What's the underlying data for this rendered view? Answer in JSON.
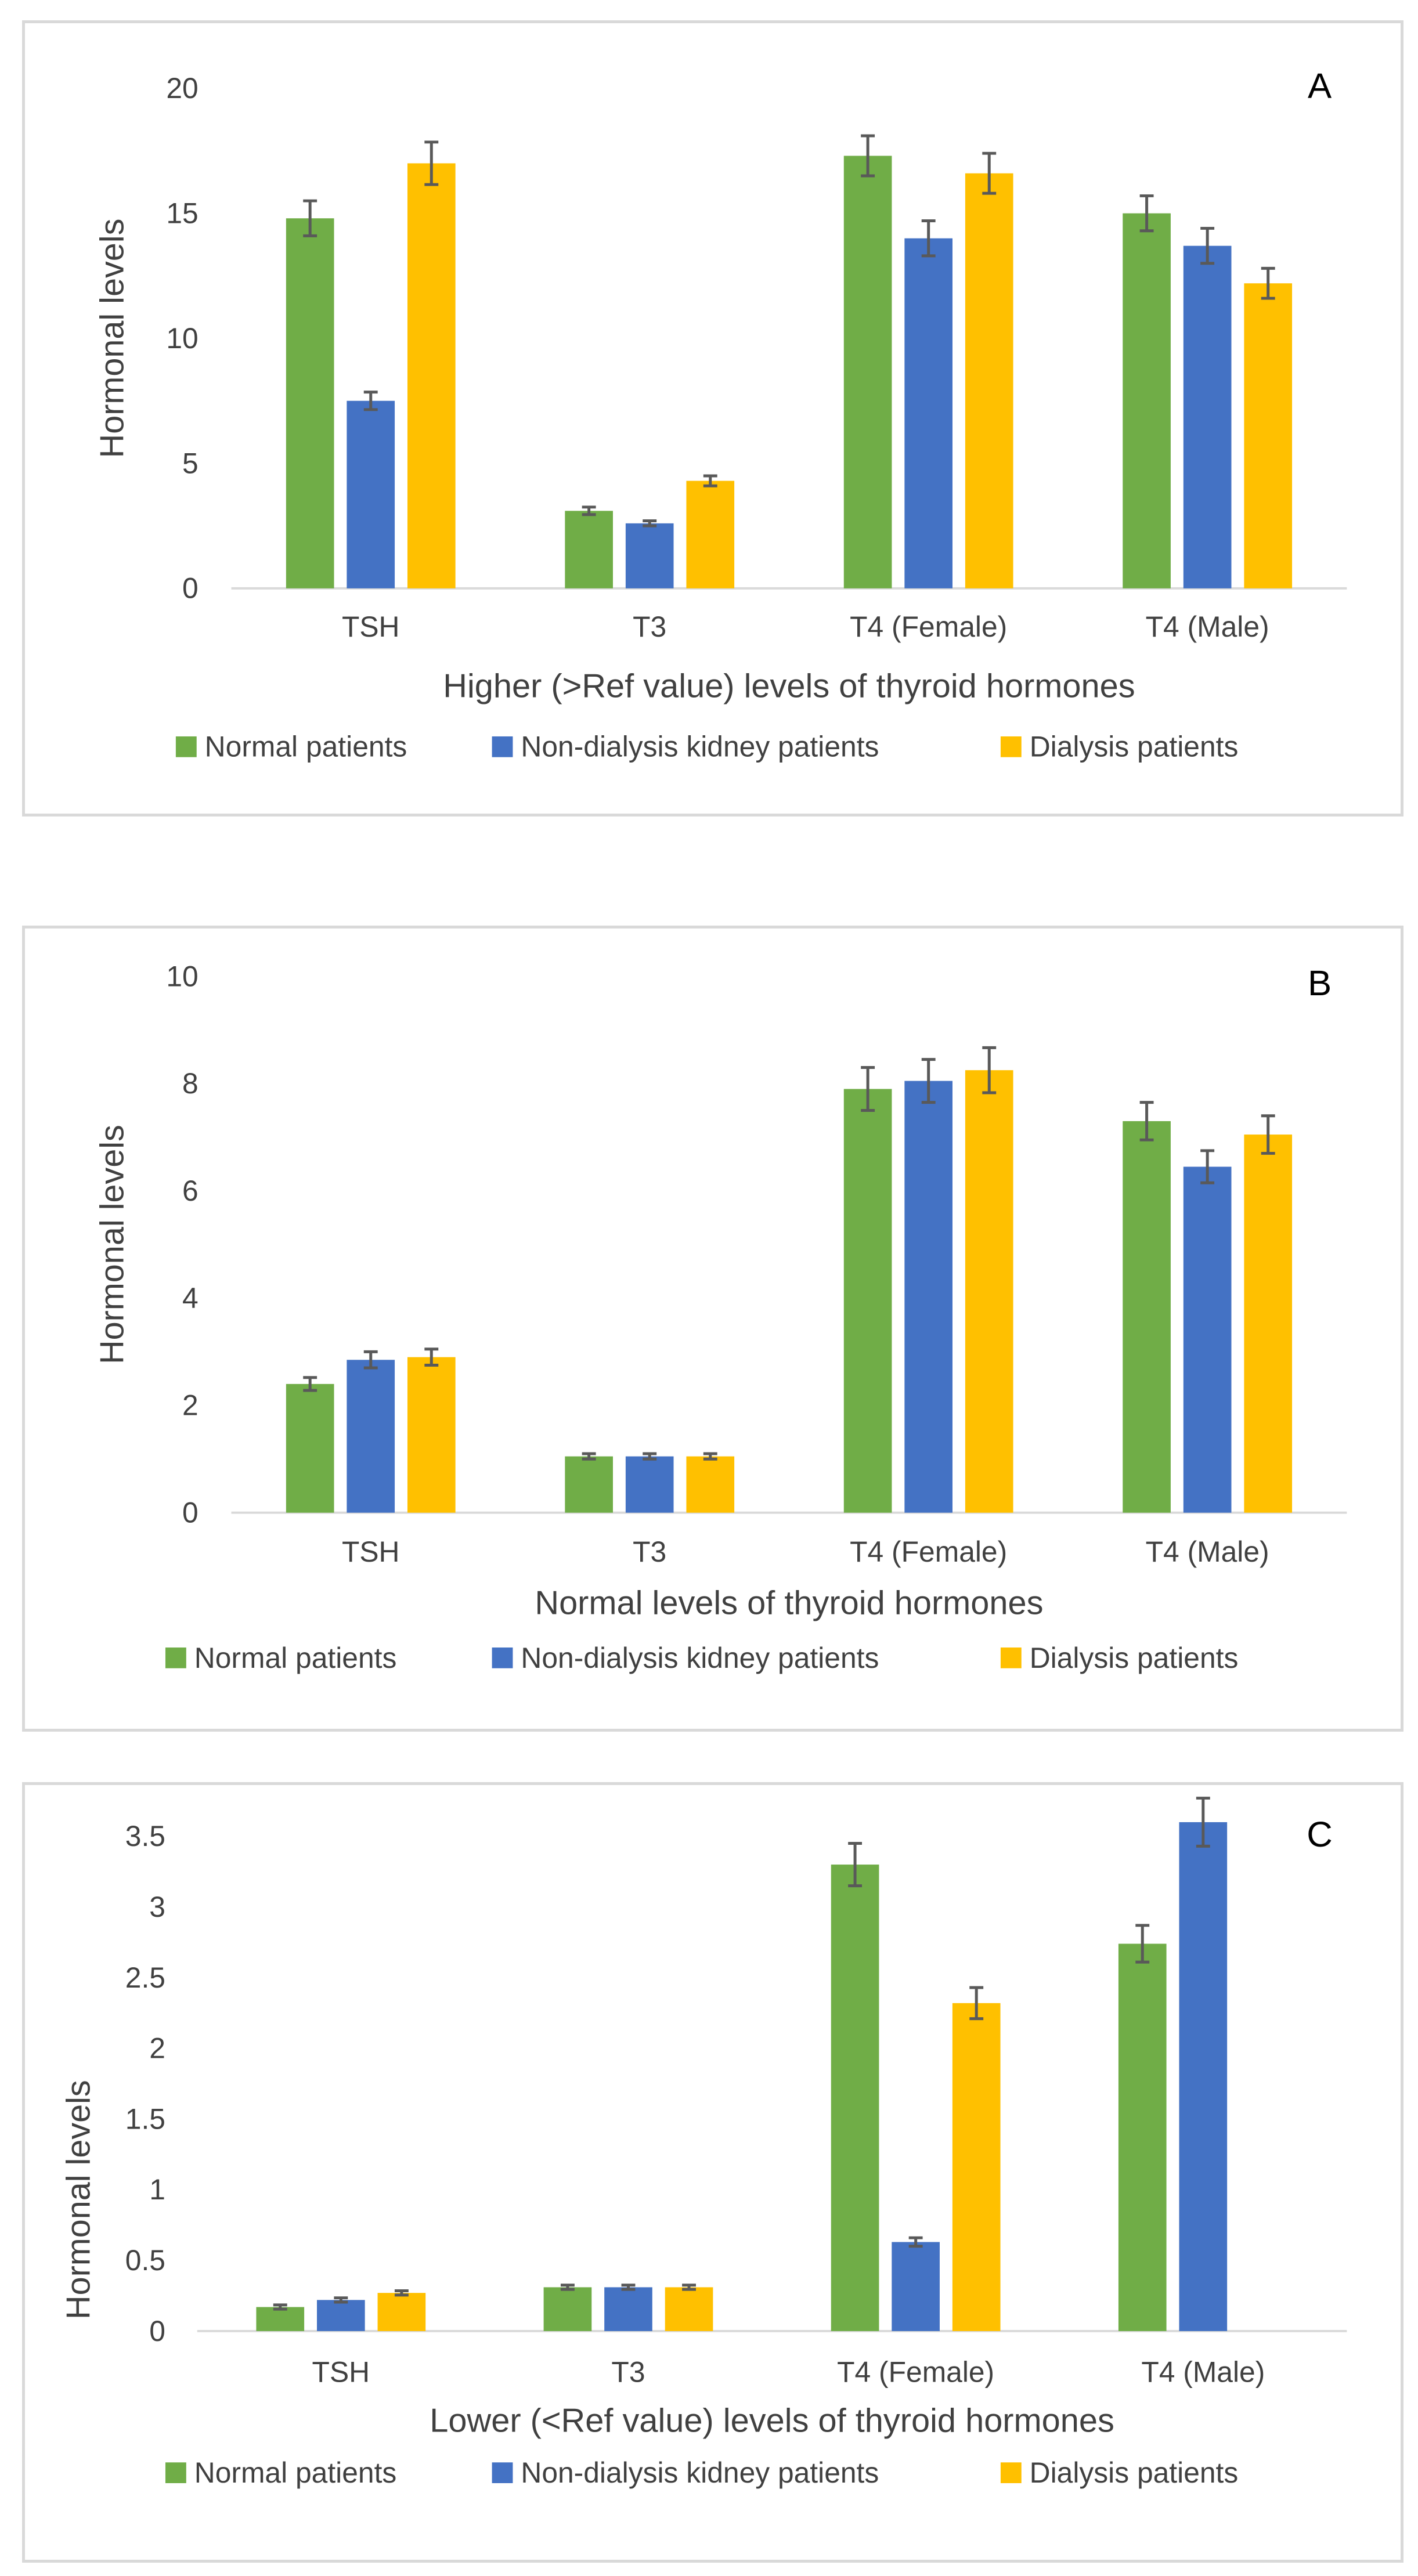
{
  "chart_data": [
    {
      "type": "bar",
      "panel_letter": "A",
      "categories": [
        "TSH",
        "T3",
        "T4 (Female)",
        "T4 (Male)"
      ],
      "series": [
        {
          "name": "Normal patients",
          "values": [
            14.8,
            3.1,
            17.3,
            15.0
          ],
          "errors": [
            0.7,
            0.15,
            0.8,
            0.7
          ]
        },
        {
          "name": "Non-dialysis kidney patients",
          "values": [
            7.5,
            2.6,
            14.0,
            13.7
          ],
          "errors": [
            0.35,
            0.1,
            0.7,
            0.7
          ]
        },
        {
          "name": "Dialysis patients",
          "values": [
            17.0,
            4.3,
            16.6,
            12.2
          ],
          "errors": [
            0.85,
            0.2,
            0.8,
            0.6
          ]
        }
      ],
      "colors": [
        "#70ad47",
        "#4472c4",
        "#ffc000"
      ],
      "xlabel": "Higher (>Ref value) levels of thyroid hormones",
      "ylabel": "Hormonal levels",
      "ylim": [
        0,
        20
      ],
      "yticks": [
        "0",
        "5",
        "10",
        "15",
        "20"
      ],
      "grid": false,
      "legend_position": "bottom"
    },
    {
      "type": "bar",
      "panel_letter": "B",
      "categories": [
        "TSH",
        "T3",
        "T4 (Female)",
        "T4 (Male)"
      ],
      "series": [
        {
          "name": "Normal patients",
          "values": [
            2.4,
            1.05,
            7.9,
            7.3
          ],
          "errors": [
            0.12,
            0.05,
            0.4,
            0.35
          ]
        },
        {
          "name": "Non-dialysis kidney patients",
          "values": [
            2.85,
            1.05,
            8.05,
            6.45
          ],
          "errors": [
            0.15,
            0.05,
            0.4,
            0.3
          ]
        },
        {
          "name": "Dialysis patients",
          "values": [
            2.9,
            1.05,
            8.25,
            7.05
          ],
          "errors": [
            0.15,
            0.05,
            0.42,
            0.35
          ]
        }
      ],
      "colors": [
        "#70ad47",
        "#4472c4",
        "#ffc000"
      ],
      "xlabel": "Normal levels of thyroid hormones",
      "ylabel": "Hormonal levels",
      "ylim": [
        0,
        10
      ],
      "yticks": [
        "0",
        "2",
        "4",
        "6",
        "8",
        "10"
      ],
      "grid": false,
      "legend_position": "bottom"
    },
    {
      "type": "bar",
      "panel_letter": "C",
      "categories": [
        "TSH",
        "T3",
        "T4 (Female)",
        "T4 (Male)"
      ],
      "series": [
        {
          "name": "Normal patients",
          "values": [
            0.17,
            0.31,
            3.3,
            2.74
          ],
          "errors": [
            0.015,
            0.015,
            0.15,
            0.13
          ]
        },
        {
          "name": "Non-dialysis kidney patients",
          "values": [
            0.22,
            0.31,
            0.63,
            3.6
          ],
          "errors": [
            0.015,
            0.015,
            0.03,
            0.17
          ]
        },
        {
          "name": "Dialysis patients",
          "values": [
            0.27,
            0.31,
            2.32,
            null
          ],
          "errors": [
            0.015,
            0.015,
            0.11,
            null
          ]
        }
      ],
      "colors": [
        "#70ad47",
        "#4472c4",
        "#ffc000"
      ],
      "xlabel": "Lower (<Ref value) levels of thyroid hormones",
      "ylabel": "Hormonal levels",
      "ylim": [
        0,
        4
      ],
      "yticks": [
        "0",
        "0.5",
        "1",
        "1.5",
        "2",
        "2.5",
        "3",
        "3.5"
      ],
      "grid": false,
      "legend_position": "bottom"
    }
  ]
}
